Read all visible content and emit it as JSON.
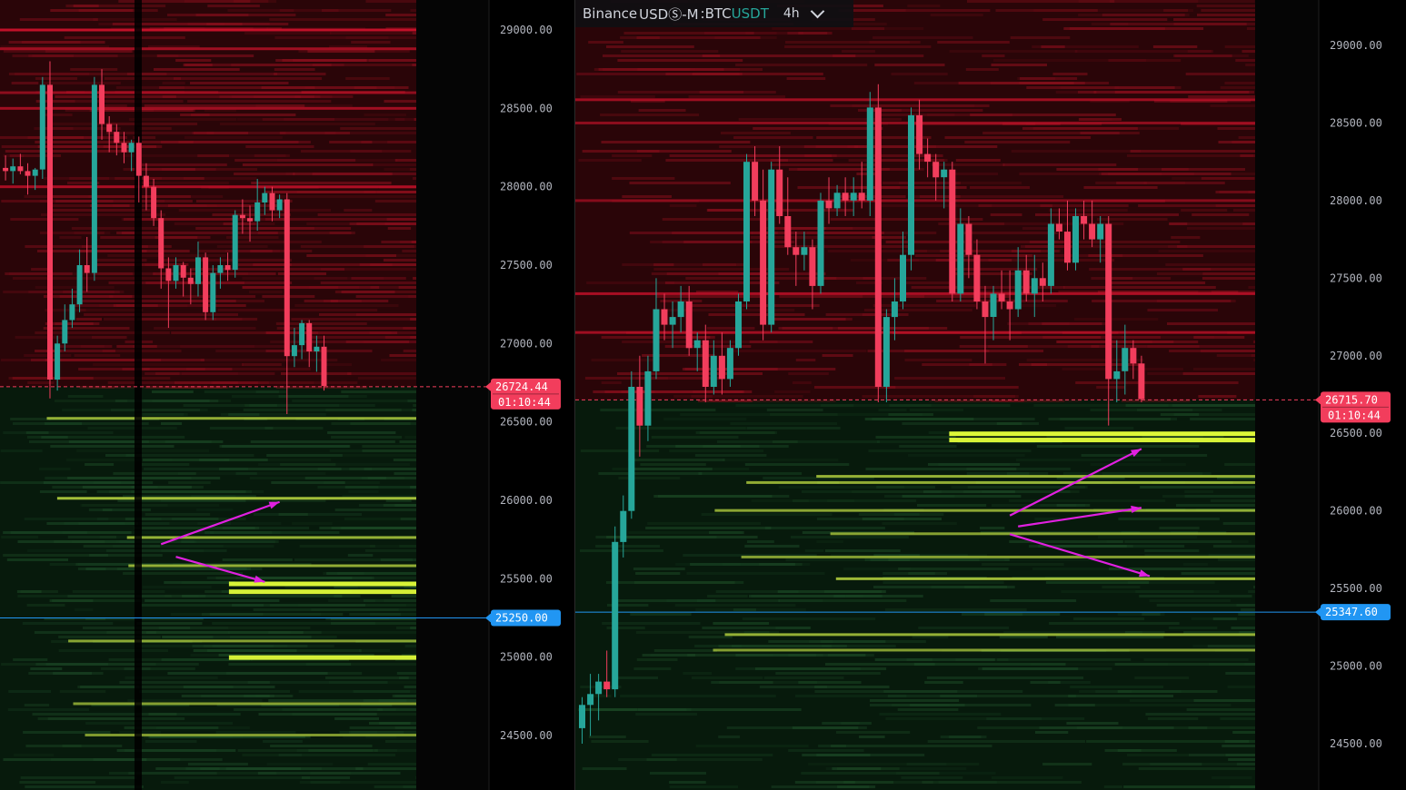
{
  "header": {
    "exchange": "Binance",
    "market": "USDⓈ-M",
    "separator": ":",
    "base": "BTC",
    "quote": "USDT",
    "interval": "4h",
    "dropdown_icon": "chevron-down-icon"
  },
  "colors": {
    "bull": "#26a69a",
    "bear": "#f23d5c",
    "last_price_tag": "#f23d5c",
    "crosshair_tag": "#2196f3",
    "arrow": "#e020e0",
    "heat_ask": "#8a0f1c",
    "heat_bid": "#1c4a26",
    "heat_hot": "#e4ff3a"
  },
  "chart_data": [
    {
      "type": "candlestick-heatmap",
      "panel": "left",
      "title": "",
      "ylim": [
        24200,
        29200
      ],
      "y_ticks": [
        "29000.00",
        "28500.00",
        "28000.00",
        "27500.00",
        "27000.00",
        "26500.00",
        "26000.00",
        "25500.00",
        "25000.00",
        "24500.00"
      ],
      "y_tick_values": [
        29000,
        28500,
        28000,
        27500,
        27000,
        26500,
        26000,
        25500,
        25000,
        24500
      ],
      "last_price": 26724.44,
      "last_price_label": "26724.44",
      "countdown_label": "01:10:44",
      "crosshair_price": 25250,
      "crosshair_label": "25250.00",
      "candles": [
        [
          28120,
          28200,
          28040,
          28100
        ],
        [
          28100,
          28180,
          28020,
          28130
        ],
        [
          28130,
          28210,
          28080,
          28100
        ],
        [
          28100,
          28150,
          27950,
          28070
        ],
        [
          28070,
          28120,
          27980,
          28110
        ],
        [
          28110,
          28700,
          28050,
          28650
        ],
        [
          28650,
          28800,
          26650,
          26770
        ],
        [
          26770,
          27050,
          26700,
          27000
        ],
        [
          27000,
          27250,
          26950,
          27150
        ],
        [
          27150,
          27350,
          27100,
          27250
        ],
        [
          27250,
          27600,
          27200,
          27500
        ],
        [
          27500,
          27680,
          27330,
          27450
        ],
        [
          27450,
          28700,
          27400,
          28650
        ],
        [
          28650,
          28750,
          28300,
          28400
        ],
        [
          28400,
          28450,
          28220,
          28350
        ],
        [
          28350,
          28400,
          28200,
          28280
        ],
        [
          28280,
          28350,
          28150,
          28220
        ],
        [
          28220,
          28300,
          28100,
          28280
        ],
        [
          28280,
          28320,
          27900,
          28070
        ],
        [
          28070,
          28150,
          27850,
          28000
        ],
        [
          28000,
          28050,
          27750,
          27800
        ],
        [
          27800,
          27850,
          27350,
          27480
        ],
        [
          27480,
          27550,
          27100,
          27400
        ],
        [
          27400,
          27550,
          27350,
          27500
        ],
        [
          27500,
          27520,
          27300,
          27420
        ],
        [
          27420,
          27480,
          27250,
          27380
        ],
        [
          27380,
          27650,
          27300,
          27550
        ],
        [
          27550,
          27580,
          27150,
          27200
        ],
        [
          27200,
          27500,
          27150,
          27450
        ],
        [
          27450,
          27550,
          27350,
          27500
        ],
        [
          27500,
          27580,
          27400,
          27470
        ],
        [
          27470,
          27850,
          27420,
          27820
        ],
        [
          27820,
          27920,
          27700,
          27800
        ],
        [
          27800,
          27880,
          27650,
          27780
        ],
        [
          27780,
          28050,
          27720,
          27900
        ],
        [
          27900,
          28000,
          27820,
          27960
        ],
        [
          27960,
          28000,
          27780,
          27850
        ],
        [
          27850,
          27950,
          27800,
          27920
        ],
        [
          27920,
          27960,
          26550,
          26920
        ],
        [
          26920,
          27100,
          26850,
          26990
        ],
        [
          26990,
          27150,
          26900,
          27130
        ],
        [
          27130,
          27150,
          26850,
          26950
        ],
        [
          26950,
          27050,
          26820,
          26980
        ],
        [
          26980,
          27050,
          26700,
          26730
        ]
      ],
      "bid_levels": [
        {
          "price": 26520,
          "strength": 0.55
        },
        {
          "price": 26010,
          "strength": 0.75
        },
        {
          "price": 25760,
          "strength": 0.6
        },
        {
          "price": 25580,
          "strength": 0.55
        },
        {
          "price": 25470,
          "strength": 0.9
        },
        {
          "price": 25420,
          "strength": 0.85
        },
        {
          "price": 25100,
          "strength": 0.45
        },
        {
          "price": 25000,
          "strength": 0.85
        },
        {
          "price": 24700,
          "strength": 0.4
        },
        {
          "price": 24500,
          "strength": 0.35
        }
      ],
      "ask_levels": [
        {
          "price": 29000,
          "strength": 0.9
        },
        {
          "price": 28880,
          "strength": 0.7
        },
        {
          "price": 28600,
          "strength": 0.6
        },
        {
          "price": 28500,
          "strength": 0.7
        },
        {
          "price": 28000,
          "strength": 0.75
        }
      ],
      "arrows": [
        {
          "from": [
            21,
            25720
          ],
          "to": [
            37,
            25990
          ]
        },
        {
          "from": [
            23,
            25640
          ],
          "to": [
            35,
            25480
          ]
        }
      ]
    },
    {
      "type": "candlestick-heatmap",
      "panel": "right",
      "title": "",
      "ylim": [
        24200,
        29250
      ],
      "y_ticks": [
        "29000.00",
        "28500.00",
        "28000.00",
        "27500.00",
        "27000.00",
        "26500.00",
        "26000.00",
        "25500.00",
        "25000.00",
        "24500.00"
      ],
      "y_tick_values": [
        29000,
        28500,
        28000,
        27500,
        27000,
        26500,
        26000,
        25500,
        25000,
        24500
      ],
      "last_price": 26715.7,
      "last_price_label": "26715.70",
      "countdown_label": "01:10:44",
      "crosshair_price": 25347.6,
      "crosshair_label": "25347.60",
      "candles": [
        [
          24600,
          24800,
          24500,
          24750
        ],
        [
          24750,
          24950,
          24550,
          24820
        ],
        [
          24820,
          24950,
          24650,
          24900
        ],
        [
          24900,
          25100,
          24800,
          24850
        ],
        [
          24850,
          25900,
          24800,
          25800
        ],
        [
          25800,
          26100,
          25700,
          26000
        ],
        [
          26000,
          26900,
          25950,
          26800
        ],
        [
          26800,
          27000,
          26350,
          26550
        ],
        [
          26550,
          27000,
          26450,
          26900
        ],
        [
          26900,
          27500,
          26850,
          27300
        ],
        [
          27300,
          27400,
          27100,
          27200
        ],
        [
          27200,
          27350,
          27050,
          27250
        ],
        [
          27250,
          27450,
          27150,
          27350
        ],
        [
          27350,
          27450,
          27000,
          27050
        ],
        [
          27050,
          27150,
          26900,
          27100
        ],
        [
          27100,
          27200,
          26700,
          26800
        ],
        [
          26800,
          27100,
          26750,
          27000
        ],
        [
          27000,
          27150,
          26750,
          26850
        ],
        [
          26850,
          27100,
          26800,
          27050
        ],
        [
          27050,
          27400,
          27000,
          27350
        ],
        [
          27350,
          28300,
          27300,
          28250
        ],
        [
          28250,
          28350,
          27900,
          28000
        ],
        [
          28000,
          28200,
          27100,
          27200
        ],
        [
          27200,
          28250,
          27150,
          28200
        ],
        [
          28200,
          28350,
          27850,
          27900
        ],
        [
          27900,
          28150,
          27650,
          27700
        ],
        [
          27700,
          27800,
          27450,
          27650
        ],
        [
          27650,
          27800,
          27550,
          27700
        ],
        [
          27700,
          27750,
          27300,
          27450
        ],
        [
          27450,
          28050,
          27400,
          28000
        ],
        [
          28000,
          28150,
          27850,
          27950
        ],
        [
          27950,
          28100,
          27900,
          28050
        ],
        [
          28050,
          28150,
          27900,
          28000
        ],
        [
          28000,
          28150,
          27900,
          28050
        ],
        [
          28050,
          28250,
          27950,
          28000
        ],
        [
          28000,
          28700,
          27900,
          28600
        ],
        [
          28600,
          28750,
          26700,
          26800
        ],
        [
          26800,
          27300,
          26700,
          27250
        ],
        [
          27250,
          27500,
          27100,
          27350
        ],
        [
          27350,
          27800,
          27300,
          27650
        ],
        [
          27650,
          28600,
          27550,
          28550
        ],
        [
          28550,
          28650,
          28200,
          28300
        ],
        [
          28300,
          28400,
          28150,
          28250
        ],
        [
          28250,
          28300,
          28000,
          28150
        ],
        [
          28150,
          28250,
          27950,
          28200
        ],
        [
          28200,
          28250,
          27350,
          27400
        ],
        [
          27400,
          27950,
          27350,
          27850
        ],
        [
          27850,
          27900,
          27500,
          27650
        ],
        [
          27650,
          27750,
          27300,
          27350
        ],
        [
          27350,
          27450,
          26950,
          27250
        ],
        [
          27250,
          27450,
          27100,
          27400
        ],
        [
          27400,
          27550,
          27300,
          27350
        ],
        [
          27350,
          27550,
          27100,
          27300
        ],
        [
          27300,
          27700,
          27250,
          27550
        ],
        [
          27550,
          27650,
          27350,
          27400
        ],
        [
          27400,
          27650,
          27250,
          27500
        ],
        [
          27500,
          27600,
          27350,
          27450
        ],
        [
          27450,
          27950,
          27400,
          27850
        ],
        [
          27850,
          27950,
          27750,
          27800
        ],
        [
          27800,
          28000,
          27550,
          27600
        ],
        [
          27600,
          27950,
          27550,
          27900
        ],
        [
          27900,
          28000,
          27750,
          27850
        ],
        [
          27850,
          28000,
          27700,
          27750
        ],
        [
          27750,
          27900,
          27600,
          27850
        ],
        [
          27850,
          27900,
          26550,
          26850
        ],
        [
          26850,
          27100,
          26700,
          26900
        ],
        [
          26900,
          27200,
          26750,
          27050
        ],
        [
          27050,
          27100,
          26850,
          26950
        ],
        [
          26950,
          27000,
          26700,
          26720
        ]
      ],
      "bid_levels": [
        {
          "price": 26500,
          "strength": 0.95
        },
        {
          "price": 26460,
          "strength": 0.9
        },
        {
          "price": 26220,
          "strength": 0.6
        },
        {
          "price": 26180,
          "strength": 0.55
        },
        {
          "price": 26000,
          "strength": 0.5
        },
        {
          "price": 25850,
          "strength": 0.45
        },
        {
          "price": 25700,
          "strength": 0.4
        },
        {
          "price": 25560,
          "strength": 0.7
        },
        {
          "price": 25200,
          "strength": 0.6
        },
        {
          "price": 25100,
          "strength": 0.4
        }
      ],
      "ask_levels": [
        {
          "price": 28650,
          "strength": 0.7
        },
        {
          "price": 28500,
          "strength": 0.6
        },
        {
          "price": 28000,
          "strength": 0.55
        },
        {
          "price": 27400,
          "strength": 0.75
        },
        {
          "price": 27150,
          "strength": 0.7
        }
      ],
      "arrows": [
        {
          "from": [
            52,
            25970
          ],
          "to": [
            68,
            26400
          ]
        },
        {
          "from": [
            53,
            25900
          ],
          "to": [
            68,
            26020
          ]
        },
        {
          "from": [
            52,
            25850
          ],
          "to": [
            69,
            25580
          ]
        }
      ]
    }
  ]
}
